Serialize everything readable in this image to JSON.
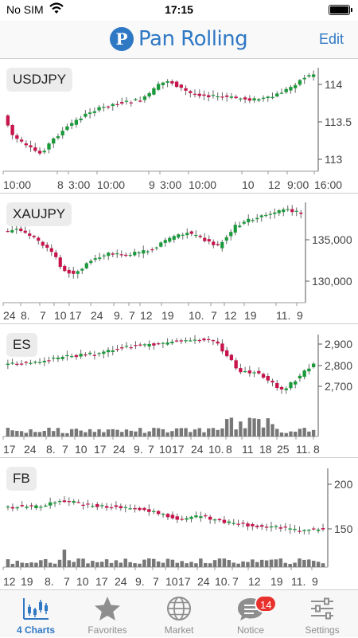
{
  "status_bar": {
    "carrier": "No SIM",
    "time": "17:15"
  },
  "header": {
    "logo_mark": "P",
    "logo_text": "Pan Rolling",
    "edit_label": "Edit"
  },
  "colors": {
    "up": "#1a9a3a",
    "down": "#c8144b",
    "accent": "#2f78c4",
    "volume": "#777777",
    "badge": "#e8302c"
  },
  "charts": [
    {
      "symbol": "USDJPY",
      "y_ticks": [
        "114",
        "113.5",
        "113"
      ],
      "x_ticks": [
        "10:00",
        "8",
        "3:00",
        "10:00",
        "9",
        "3:00",
        "10:00",
        "10",
        "12",
        "9:00",
        "16:00"
      ]
    },
    {
      "symbol": "XAUJPY",
      "y_ticks": [
        "135,000",
        "130,000"
      ],
      "x_ticks": [
        "24",
        "8.",
        "7",
        "10",
        "17",
        "24",
        "9.",
        "7",
        "12",
        "19",
        "10.",
        "7",
        "12",
        "19",
        "11.",
        "9"
      ]
    },
    {
      "symbol": "ES",
      "y_ticks": [
        "2,900",
        "2,800",
        "2,700"
      ],
      "x_ticks": [
        "17",
        "24",
        "8.",
        "7",
        "10",
        "17",
        "24",
        "9.",
        "7",
        "10",
        "17",
        "24",
        "10.",
        "8",
        "11",
        "18",
        "25",
        "11.",
        "8"
      ]
    },
    {
      "symbol": "FB",
      "y_ticks": [
        "200",
        "150"
      ],
      "x_ticks": [
        "12",
        "19",
        "8.",
        "7",
        "10",
        "17",
        "24",
        "9.",
        "7",
        "10",
        "17",
        "24",
        "10.",
        "7",
        "12",
        "19",
        "11.",
        "9"
      ]
    }
  ],
  "tabs": [
    {
      "label": "4 Charts",
      "icon": "candlestick-chart-icon",
      "active": true
    },
    {
      "label": "Favorites",
      "icon": "star-icon",
      "active": false
    },
    {
      "label": "Market",
      "icon": "globe-icon",
      "active": false
    },
    {
      "label": "Notice",
      "icon": "speech-bubble-icon",
      "active": false,
      "badge": "14"
    },
    {
      "label": "Settings",
      "icon": "sliders-icon",
      "active": false
    }
  ]
}
